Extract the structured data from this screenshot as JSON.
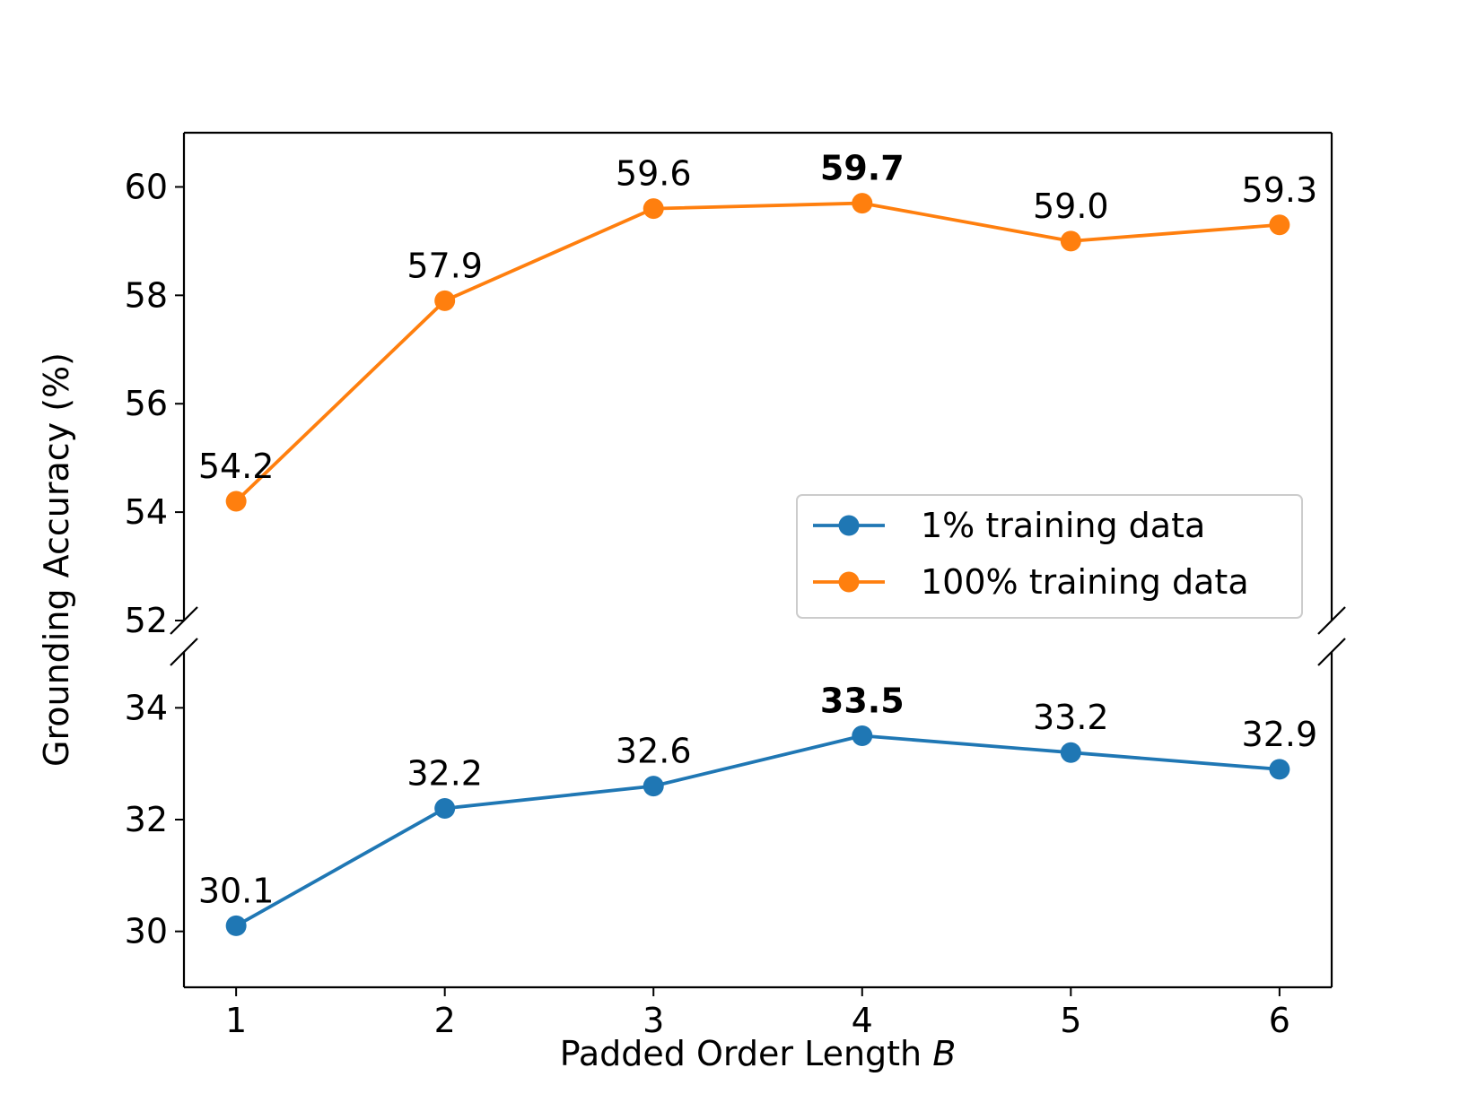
{
  "chart_data": {
    "type": "line",
    "broken_y_axis": true,
    "xlabel_prefix": "Padded Order Length ",
    "xlabel_var": "B",
    "ylabel": "Grounding Accuracy (%)",
    "x": [
      1,
      2,
      3,
      4,
      5,
      6
    ],
    "x_ticks": [
      "1",
      "2",
      "3",
      "4",
      "5",
      "6"
    ],
    "xlim": [
      0.75,
      6.25
    ],
    "panels": {
      "top": {
        "ylim": [
          52,
          61
        ],
        "y_ticks": [
          "52",
          "54",
          "56",
          "58",
          "60"
        ]
      },
      "bottom": {
        "ylim": [
          29,
          35
        ],
        "y_ticks": [
          "30",
          "32",
          "34"
        ]
      }
    },
    "series": [
      {
        "name": "1% training data",
        "color": "#1f77b4",
        "panel": "bottom",
        "values": [
          30.1,
          32.2,
          32.6,
          33.5,
          33.2,
          32.9
        ],
        "labels": [
          "30.1",
          "32.2",
          "32.6",
          "33.5",
          "33.2",
          "32.9"
        ],
        "best_index": 3
      },
      {
        "name": "100% training data",
        "color": "#ff7f0e",
        "panel": "top",
        "values": [
          54.2,
          57.9,
          59.6,
          59.7,
          59.0,
          59.3
        ],
        "labels": [
          "54.2",
          "57.9",
          "59.6",
          "59.7",
          "59.0",
          "59.3"
        ],
        "best_index": 3
      }
    ],
    "legend": {
      "position": "lower-right of top panel",
      "entries": [
        "1% training data",
        "100% training data"
      ]
    },
    "grid": false
  }
}
